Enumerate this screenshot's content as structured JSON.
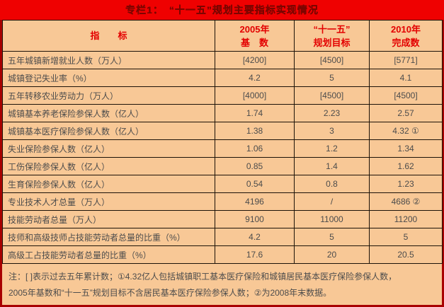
{
  "title": "专栏1：　“十一五”规划主要指标实现情况",
  "colors": {
    "title_bar_bg": "#ef0101",
    "title_text": "#7e0600",
    "cell_bg": "#f8c896",
    "header_text": "#e30000",
    "body_text": "#4c4c4c",
    "grid_border": "#1c1208",
    "outer_border": "#a80000"
  },
  "table": {
    "headers": [
      "指　　标",
      "2005年\n基　数",
      "“十一五”\n规划目标",
      "2010年\n完成数"
    ],
    "rows": [
      {
        "indicator": "五年城镇新增就业人数（万人）",
        "base_2005": "[4200]",
        "plan_target": "[4500]",
        "completed_2010": "[5771]"
      },
      {
        "indicator": "城镇登记失业率（%）",
        "base_2005": "4.2",
        "plan_target": "5",
        "completed_2010": "4.1"
      },
      {
        "indicator": "五年转移农业劳动力（万人）",
        "base_2005": "[4000]",
        "plan_target": "[4500]",
        "completed_2010": "[4500]"
      },
      {
        "indicator": "城镇基本养老保险参保人数（亿人）",
        "base_2005": "1.74",
        "plan_target": "2.23",
        "completed_2010": "2.57"
      },
      {
        "indicator": "城镇基本医疗保险参保人数（亿人）",
        "base_2005": "1.38",
        "plan_target": "3",
        "completed_2010": "4.32 ①"
      },
      {
        "indicator": "失业保险参保人数（亿人）",
        "base_2005": "1.06",
        "plan_target": "1.2",
        "completed_2010": "1.34"
      },
      {
        "indicator": "工伤保险参保人数（亿人）",
        "base_2005": "0.85",
        "plan_target": "1.4",
        "completed_2010": "1.62"
      },
      {
        "indicator": "生育保险参保人数（亿人）",
        "base_2005": "0.54",
        "plan_target": "0.8",
        "completed_2010": "1.23"
      },
      {
        "indicator": "专业技术人才总量（万人）",
        "base_2005": "4196",
        "plan_target": "/",
        "completed_2010": "4686 ②"
      },
      {
        "indicator": "技能劳动者总量（万人）",
        "base_2005": "9100",
        "plan_target": "11000",
        "completed_2010": "11200"
      },
      {
        "indicator": "技师和高级技师占技能劳动者总量的比重（%）",
        "base_2005": "4.2",
        "plan_target": "5",
        "completed_2010": "5"
      },
      {
        "indicator": "高级工占技能劳动者总量的比重（%）",
        "base_2005": "17.6",
        "plan_target": "20",
        "completed_2010": "20.5"
      }
    ]
  },
  "notes": {
    "line1": "注：[ ]表示过去五年累计数；①4.32亿人包括城镇职工基本医疗保险和城镇居民基本医疗保险参保人数，",
    "line2": "2005年基数和“十一五”规划目标不含居民基本医疗保险参保人数；②为2008年末数据。"
  }
}
